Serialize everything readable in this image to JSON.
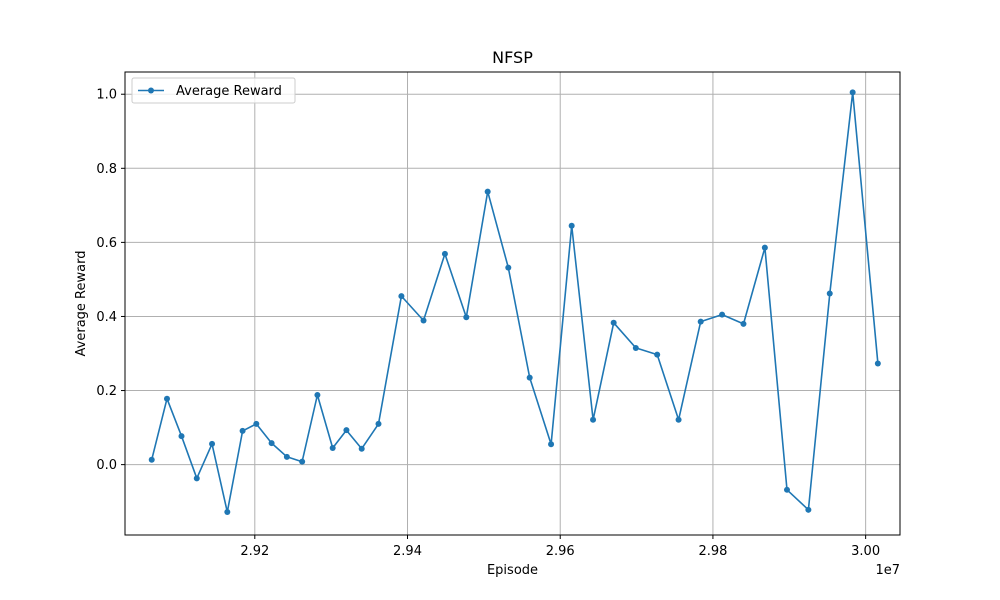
{
  "chart_data": {
    "type": "line",
    "title": "NFSP",
    "xlabel": "Episode",
    "ylabel": "Average Reward",
    "x_offset_label": "1e7",
    "x_scale": 10000000,
    "xlim": [
      29030000,
      30045000
    ],
    "ylim": [
      -0.19,
      1.06
    ],
    "x_ticks": [
      29200000,
      29400000,
      29600000,
      29800000,
      30000000
    ],
    "x_tick_labels": [
      "2.92",
      "2.94",
      "2.96",
      "2.98",
      "3.00"
    ],
    "y_ticks": [
      0.0,
      0.2,
      0.4,
      0.6,
      0.8,
      1.0
    ],
    "y_tick_labels": [
      "0.0",
      "0.2",
      "0.4",
      "0.6",
      "0.8",
      "1.0"
    ],
    "grid": true,
    "legend_position": "top-left",
    "color": "#1f77b4",
    "series": [
      {
        "name": "Average Reward",
        "x": [
          29065000,
          29085000,
          29104000,
          29124000,
          29144000,
          29164000,
          29184000,
          29202000,
          29222000,
          29242000,
          29262000,
          29282000,
          29302000,
          29320000,
          29340000,
          29362000,
          29392000,
          29421000,
          29449000,
          29477000,
          29505000,
          29532000,
          29560000,
          29588000,
          29615000,
          29643000,
          29670000,
          29699000,
          29727000,
          29755000,
          29784000,
          29812000,
          29840000,
          29868000,
          29897000,
          29925000,
          29953000,
          29983000,
          30016000
        ],
        "values": [
          0.013,
          0.178,
          0.077,
          -0.037,
          0.056,
          -0.128,
          0.091,
          0.11,
          0.058,
          0.021,
          0.008,
          0.188,
          0.045,
          0.093,
          0.043,
          0.11,
          0.455,
          0.389,
          0.569,
          0.398,
          0.737,
          0.532,
          0.235,
          0.055,
          0.645,
          0.121,
          0.383,
          0.315,
          0.297,
          0.121,
          0.386,
          0.405,
          0.38,
          0.586,
          -0.068,
          -0.122,
          0.462,
          1.005,
          0.273
        ]
      }
    ]
  }
}
